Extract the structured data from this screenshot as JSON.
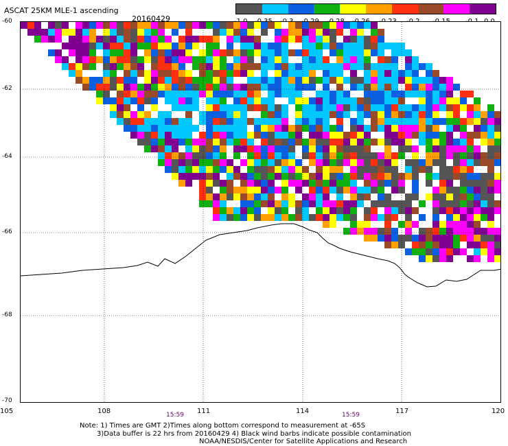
{
  "title": "ASCAT 25KM MLE-1 ascending",
  "date": "20160429",
  "colorbar": {
    "colors": [
      "#555555",
      "#00c8ff",
      "#0a60e0",
      "#10b010",
      "#ffff00",
      "#ffa000",
      "#ff3010",
      "#9a4a28",
      "#ff00ff",
      "#800090"
    ],
    "labels": [
      "-1.0",
      "-0.35",
      "-0.3",
      "-0.29",
      "-0.28",
      "-0.26",
      "-0.23",
      "-0.2",
      "-0.15",
      "-0.1",
      "0.0"
    ]
  },
  "lat_labels": [
    "-60",
    "-62",
    "-64",
    "-66",
    "-68",
    "-70"
  ],
  "lon_labels": [
    "105",
    "108",
    "111",
    "114",
    "117",
    "120"
  ],
  "times": [
    "15:59",
    "15:59"
  ],
  "notes": [
    "Note: 1) Times are GMT 2)Times along bottom correspond to measurement at -65S",
    "3)Data buffer is 22 hrs from 20160429 4) Black wind barbs indicate possible contamination",
    "NOAA/NESDIS/Center for Satellite Applications and Research"
  ]
}
